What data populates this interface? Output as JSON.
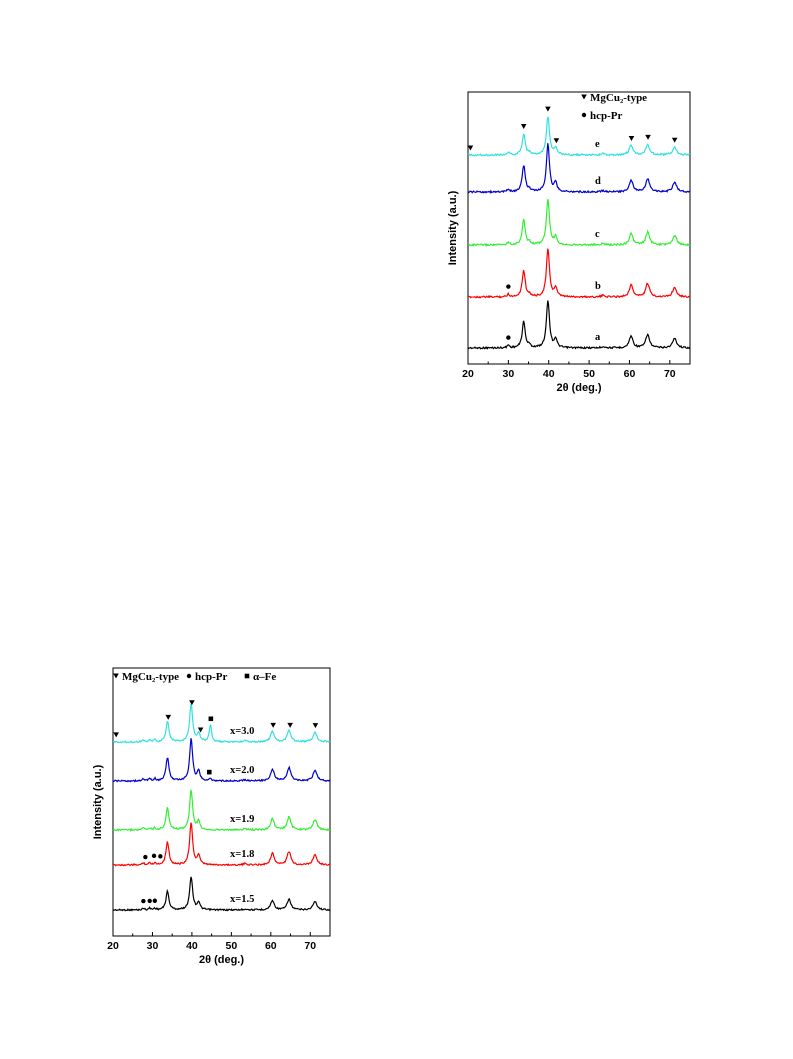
{
  "chart_data": [
    {
      "id": "top",
      "type": "line",
      "xlabel": "2θ (deg.)",
      "ylabel": "Intensity (a.u.)",
      "xlim": [
        20,
        75
      ],
      "xticks": [
        20,
        30,
        40,
        50,
        60,
        70
      ],
      "legend": [
        {
          "symbol": "triangle",
          "label": "MgCu₂-type"
        },
        {
          "symbol": "circle",
          "label": "hcp-Pr"
        }
      ],
      "peaks": [
        {
          "x": 30.0,
          "h": 0.06,
          "w": 0.3
        },
        {
          "x": 33.8,
          "h": 0.55,
          "w": 0.45
        },
        {
          "x": 35.2,
          "h": 0.05,
          "w": 0.3
        },
        {
          "x": 39.8,
          "h": 1.0,
          "w": 0.45
        },
        {
          "x": 41.7,
          "h": 0.18,
          "w": 0.4
        },
        {
          "x": 53.5,
          "h": 0.03,
          "w": 0.5
        },
        {
          "x": 60.4,
          "h": 0.25,
          "w": 0.55
        },
        {
          "x": 64.5,
          "h": 0.28,
          "w": 0.55
        },
        {
          "x": 71.2,
          "h": 0.2,
          "w": 0.6
        }
      ],
      "series": [
        {
          "name": "a",
          "color": "#000000",
          "peak_scale": 1.0
        },
        {
          "name": "b",
          "color": "#ff0000",
          "peak_scale": 1.0
        },
        {
          "name": "c",
          "color": "#33ee33",
          "peak_scale": 0.95
        },
        {
          "name": "d",
          "color": "#0000cc",
          "peak_scale": 1.0
        },
        {
          "name": "e",
          "color": "#33e0e0",
          "peak_scale": 0.8
        }
      ],
      "markers": [
        {
          "type": "circle",
          "x": 30.0,
          "series": "a"
        },
        {
          "type": "circle",
          "x": 30.0,
          "series": "b"
        },
        {
          "type": "triangle",
          "x": 20.6,
          "series": "e"
        },
        {
          "type": "triangle",
          "x": 33.8,
          "series": "e"
        },
        {
          "type": "triangle",
          "x": 39.8,
          "series": "e"
        },
        {
          "type": "triangle",
          "x": 41.9,
          "series": "e"
        },
        {
          "type": "triangle",
          "x": 60.5,
          "series": "e"
        },
        {
          "type": "triangle",
          "x": 64.6,
          "series": "e"
        },
        {
          "type": "triangle",
          "x": 71.2,
          "series": "e"
        }
      ]
    },
    {
      "id": "bottom",
      "type": "line",
      "xlabel": "2θ (deg.)",
      "ylabel": "Intensity (a.u.)",
      "xlim": [
        20,
        75
      ],
      "xticks": [
        20,
        30,
        40,
        50,
        60,
        70
      ],
      "legend": [
        {
          "symbol": "triangle",
          "label": "MgCu₂-type"
        },
        {
          "symbol": "circle",
          "label": "hcp-Pr"
        },
        {
          "symbol": "square",
          "label": "α–Fe"
        }
      ],
      "peaks": [
        {
          "x": 27.7,
          "h": 0.05,
          "w": 0.3
        },
        {
          "x": 29.3,
          "h": 0.05,
          "w": 0.3
        },
        {
          "x": 30.6,
          "h": 0.05,
          "w": 0.3
        },
        {
          "x": 33.8,
          "h": 0.55,
          "w": 0.45
        },
        {
          "x": 39.8,
          "h": 1.0,
          "w": 0.45
        },
        {
          "x": 41.7,
          "h": 0.22,
          "w": 0.4
        },
        {
          "x": 44.7,
          "h": 0.0,
          "w": 0.35
        },
        {
          "x": 53.5,
          "h": 0.03,
          "w": 0.5
        },
        {
          "x": 60.4,
          "h": 0.28,
          "w": 0.55
        },
        {
          "x": 64.6,
          "h": 0.32,
          "w": 0.55
        },
        {
          "x": 71.2,
          "h": 0.25,
          "w": 0.6
        }
      ],
      "series": [
        {
          "name": "x=1.5",
          "color": "#000000",
          "peak_scale": 0.8,
          "fe_peak": 0.0
        },
        {
          "name": "x=1.8",
          "color": "#ff0000",
          "peak_scale": 1.0,
          "fe_peak": 0.0
        },
        {
          "name": "x=1.9",
          "color": "#33ee33",
          "peak_scale": 0.95,
          "fe_peak": 0.0
        },
        {
          "name": "x=2.0",
          "color": "#0000cc",
          "peak_scale": 1.0,
          "fe_peak": 0.05
        },
        {
          "name": "x=3.0",
          "color": "#33e0e0",
          "peak_scale": 0.9,
          "fe_peak": 0.45
        }
      ],
      "markers": [
        {
          "type": "circle",
          "x": 27.7,
          "series": "x=1.5"
        },
        {
          "type": "circle",
          "x": 29.3,
          "series": "x=1.5"
        },
        {
          "type": "circle",
          "x": 30.6,
          "series": "x=1.5"
        },
        {
          "type": "circle",
          "x": 28.2,
          "series": "x=1.8"
        },
        {
          "type": "circle",
          "x": 30.4,
          "series": "x=1.8"
        },
        {
          "type": "circle",
          "x": 32.0,
          "series": "x=1.8"
        },
        {
          "type": "square",
          "x": 44.4,
          "series": "x=2.0"
        },
        {
          "type": "triangle",
          "x": 20.8,
          "series": "x=3.0"
        },
        {
          "type": "triangle",
          "x": 34.0,
          "series": "x=3.0"
        },
        {
          "type": "triangle",
          "x": 40.0,
          "series": "x=3.0"
        },
        {
          "type": "triangle",
          "x": 42.2,
          "series": "x=3.0"
        },
        {
          "type": "square",
          "x": 44.8,
          "series": "x=3.0"
        },
        {
          "type": "triangle",
          "x": 60.6,
          "series": "x=3.0"
        },
        {
          "type": "triangle",
          "x": 64.9,
          "series": "x=3.0"
        },
        {
          "type": "triangle",
          "x": 71.3,
          "series": "x=3.0"
        }
      ]
    }
  ]
}
